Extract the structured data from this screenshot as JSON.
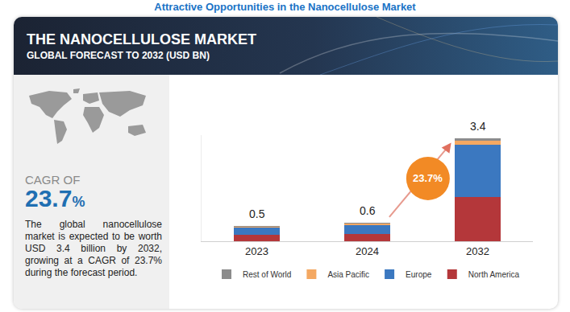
{
  "page": {
    "heading": "Attractive Opportunities in the Nanocellulose Market",
    "banner_title": "THE NANOCELLULOSE MARKET",
    "banner_subtitle": "GLOBAL FORECAST TO 2032 (USD BN)",
    "cagr_label": "CAGR OF",
    "cagr_value": "23.7",
    "cagr_unit": "%",
    "description": "The global nanocellulose market is expected to be worth USD 3.4 billion by 2032, growing at a CAGR of 23.7% during the forecast period."
  },
  "chart_data": {
    "type": "bar",
    "stacked": true,
    "categories": [
      "2023",
      "2024",
      "2032"
    ],
    "series": [
      {
        "name": "North America",
        "color": "#b4373a",
        "values": [
          0.2,
          0.24,
          1.46
        ]
      },
      {
        "name": "Europe",
        "color": "#3b78c0",
        "values": [
          0.24,
          0.29,
          1.73
        ]
      },
      {
        "name": "Asia Pacific",
        "color": "#f4a862",
        "values": [
          0.04,
          0.05,
          0.12
        ]
      },
      {
        "name": "Rest of World",
        "color": "#8c8c8c",
        "values": [
          0.02,
          0.02,
          0.09
        ]
      }
    ],
    "totals": [
      0.5,
      0.6,
      3.4
    ],
    "badge": "23.7%",
    "ylim": [
      0,
      3.5
    ],
    "tick_labels": "x",
    "grid": false,
    "legend": "bottom"
  }
}
